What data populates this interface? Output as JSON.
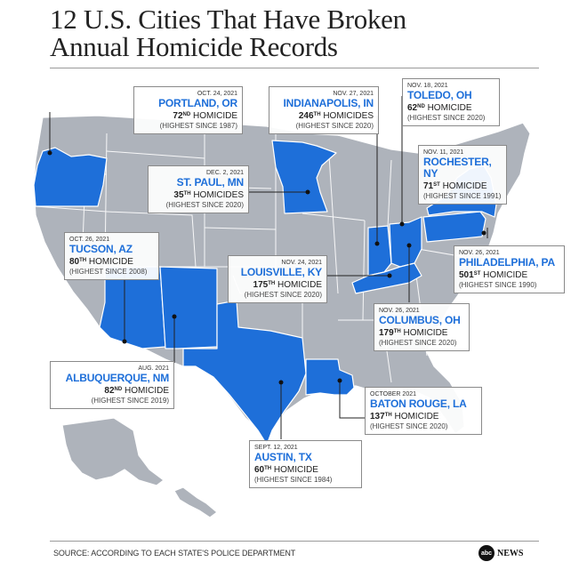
{
  "title_line1": "12 U.S. Cities That Have Broken",
  "title_line2": "Annual Homicide Records",
  "colors": {
    "highlight": "#1e6fd9",
    "state_gray": "#aeb3bb",
    "border": "#ffffff"
  },
  "cities": {
    "portland": {
      "date": "OCT. 24, 2021",
      "city": "PORTLAND, OR",
      "num": "72",
      "ord": "ND",
      "word": "HOMICIDE",
      "since": "(HIGHEST SINCE 1987)"
    },
    "stpaul": {
      "date": "DEC. 2, 2021",
      "city": "ST. PAUL, MN",
      "num": "35",
      "ord": "TH",
      "word": "HOMICIDES",
      "since": "(HIGHEST SINCE 2020)"
    },
    "indianapolis": {
      "date": "NOV. 27, 2021",
      "city": "INDIANAPOLIS, IN",
      "num": "246",
      "ord": "TH",
      "word": "HOMICIDES",
      "since": "(HIGHEST SINCE 2020)"
    },
    "toledo": {
      "date": "NOV. 18, 2021",
      "city": "TOLEDO, OH",
      "num": "62",
      "ord": "ND",
      "word": "HOMICIDE",
      "since": "(HIGHEST SINCE 2020)"
    },
    "rochester": {
      "date": "NOV. 11, 2021",
      "city": "ROCHESTER, NY",
      "num": "71",
      "ord": "ST",
      "word": "HOMICIDE",
      "since": "(HIGHEST SINCE 1991)"
    },
    "tucson": {
      "date": "OCT. 26, 2021",
      "city": "TUCSON, AZ",
      "num": "80",
      "ord": "TH",
      "word": "HOMICIDE",
      "since": "(HIGHEST SINCE 2008)"
    },
    "louisville": {
      "date": "NOV. 24, 2021",
      "city": "LOUISVILLE, KY",
      "num": "175",
      "ord": "TH",
      "word": "HOMICIDE",
      "since": "(HIGHEST SINCE 2020)"
    },
    "philadelphia": {
      "date": "NOV. 26, 2021",
      "city": "PHILADELPHIA, PA",
      "num": "501",
      "ord": "ST",
      "word": "HOMICIDE",
      "since": "(HIGHEST SINCE 1990)"
    },
    "columbus": {
      "date": "NOV. 26, 2021",
      "city": "COLUMBUS, OH",
      "num": "179",
      "ord": "TH",
      "word": "HOMICIDE",
      "since": "(HIGHEST SINCE 2020)"
    },
    "albuquerque": {
      "date": "AUG. 2021",
      "city": "ALBUQUERQUE, NM",
      "num": "82",
      "ord": "ND",
      "word": "HOMICIDE",
      "since": "(HIGHEST SINCE 2019)"
    },
    "batonrouge": {
      "date": "OCTOBER 2021",
      "city": "BATON ROUGE, LA",
      "num": "137",
      "ord": "TH",
      "word": "HOMICIDE",
      "since": "(HIGHEST SINCE 2020)"
    },
    "austin": {
      "date": "SEPT. 12, 2021",
      "city": "AUSTIN, TX",
      "num": "60",
      "ord": "TH",
      "word": "HOMICIDE",
      "since": "(HIGHEST SINCE 1984)"
    }
  },
  "source": "SOURCE: ACCORDING TO EACH STATE'S POLICE DEPARTMENT",
  "logo_badge": "abc",
  "logo_text": "NEWS"
}
